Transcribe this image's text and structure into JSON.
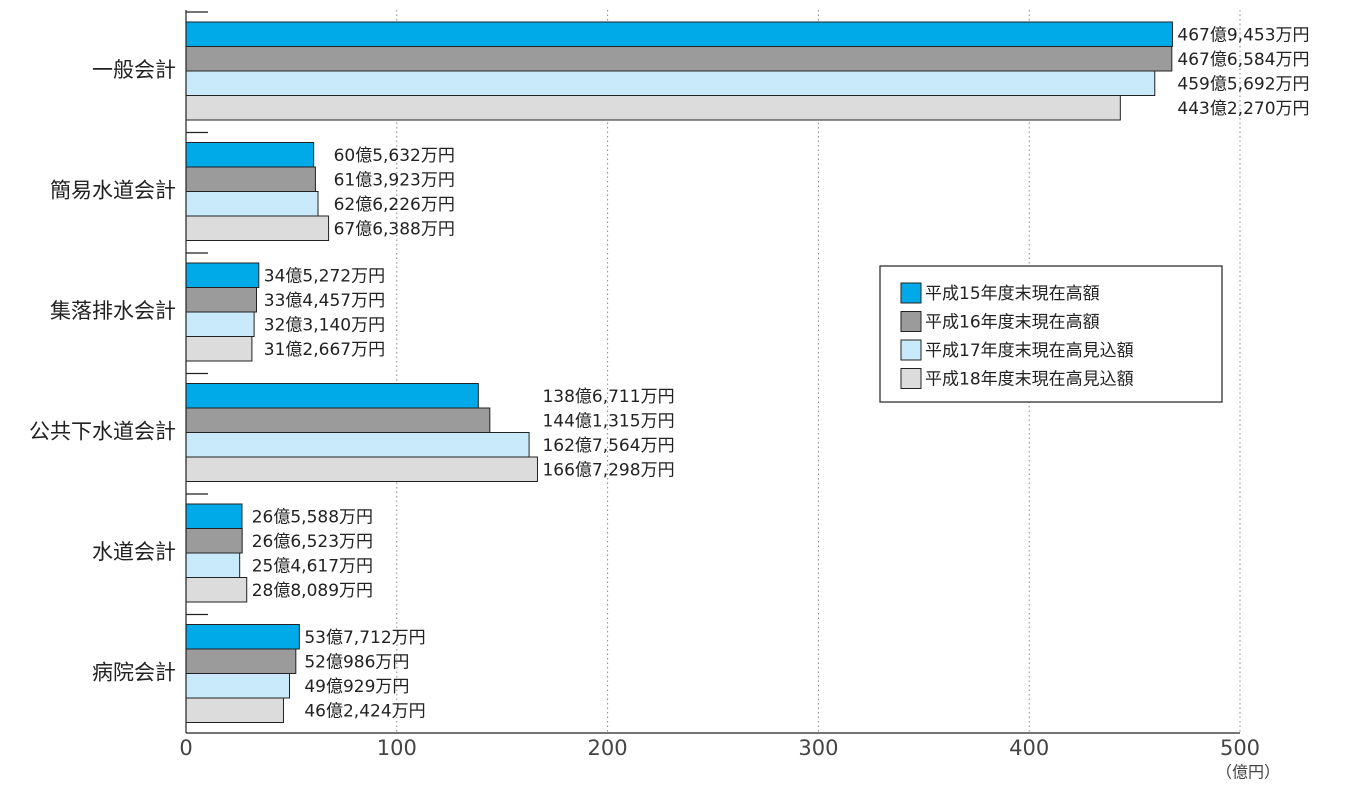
{
  "chart_data": {
    "type": "barh",
    "categories": [
      "一般会計",
      "簡易水道会計",
      "集落排水会計",
      "公共下水道会計",
      "水道会計",
      "病院会計"
    ],
    "series": [
      {
        "name": "平成15年度末現在高額",
        "color": "#00a9e8",
        "values": [
          467.9453,
          60.5632,
          34.5272,
          138.6711,
          26.5588,
          53.7712
        ],
        "value_labels": [
          "467億9,453万円",
          "60億5,632万円",
          "34億5,272万円",
          "138億6,711万円",
          "26億5,588万円",
          "53億7,712万円"
        ]
      },
      {
        "name": "平成16年度末現在高額",
        "color": "#9b9b9b",
        "values": [
          467.6584,
          61.3923,
          33.4457,
          144.1315,
          26.6523,
          52.0986
        ],
        "value_labels": [
          "467億6,584万円",
          "61億3,923万円",
          "33億4,457万円",
          "144億1,315万円",
          "26億6,523万円",
          "52億986万円"
        ]
      },
      {
        "name": "平成17年度末現在高見込額",
        "color": "#c8eafb",
        "values": [
          459.5692,
          62.6226,
          32.314,
          162.7564,
          25.4617,
          49.0929
        ],
        "value_labels": [
          "459億5,692万円",
          "62億6,226万円",
          "32億3,140万円",
          "162億7,564万円",
          "25億4,617万円",
          "49億929万円"
        ]
      },
      {
        "name": "平成18年度末現在高見込額",
        "color": "#dcdcdc",
        "values": [
          443.227,
          67.6388,
          31.2667,
          166.7298,
          28.8089,
          46.2424
        ],
        "value_labels": [
          "443億2,270万円",
          "67億6,388万円",
          "31億2,667万円",
          "166億7,298万円",
          "28億8,089万円",
          "46億2,424万円"
        ]
      }
    ],
    "xlim": [
      0,
      500
    ],
    "xticks": [
      0,
      100,
      200,
      300,
      400,
      500
    ],
    "x_unit": "（億円）",
    "grid": true,
    "legend": "right"
  }
}
